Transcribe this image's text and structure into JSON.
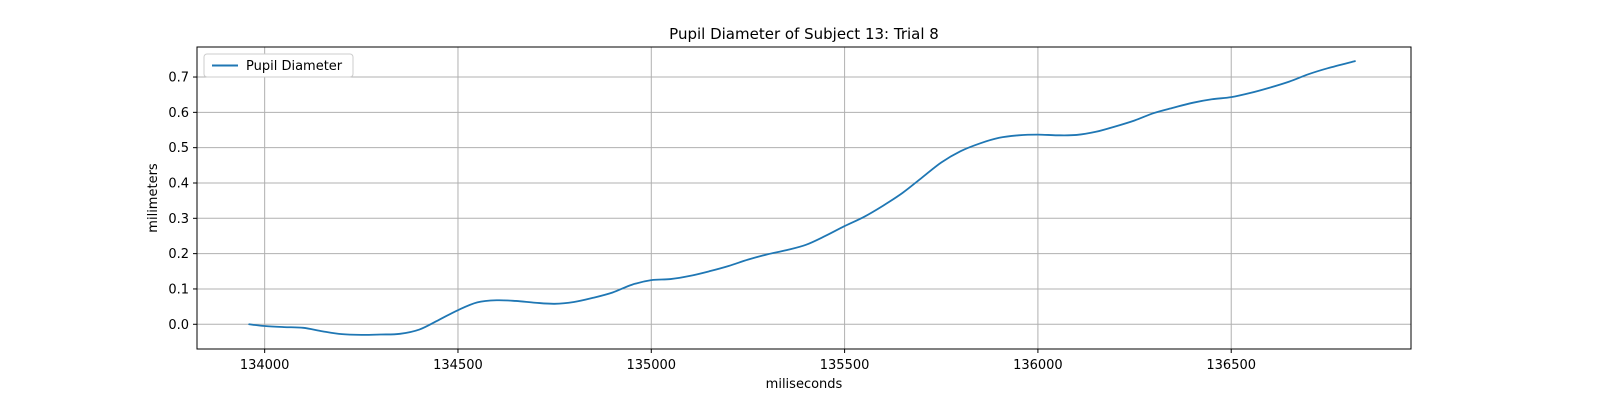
{
  "chart_data": {
    "type": "line",
    "title": "Pupil Diameter of Subject 13: Trial 8",
    "xlabel": "miliseconds",
    "ylabel": "milimeters",
    "xlim": [
      133825,
      136965
    ],
    "ylim": [
      -0.07,
      0.785
    ],
    "xticks": [
      134000,
      134500,
      135000,
      135500,
      136000,
      136500
    ],
    "yticks": [
      0.0,
      0.1,
      0.2,
      0.3,
      0.4,
      0.5,
      0.6,
      0.7
    ],
    "grid": true,
    "legend": {
      "position": "upper-left"
    },
    "series": [
      {
        "name": "Pupil Diameter",
        "color": "#1f77b4",
        "x": [
          133960,
          134000,
          134050,
          134100,
          134150,
          134200,
          134250,
          134300,
          134350,
          134400,
          134450,
          134500,
          134550,
          134600,
          134650,
          134700,
          134750,
          134800,
          134850,
          134900,
          134950,
          135000,
          135050,
          135100,
          135150,
          135200,
          135250,
          135300,
          135350,
          135400,
          135450,
          135500,
          135550,
          135600,
          135650,
          135700,
          135750,
          135800,
          135850,
          135900,
          135950,
          136000,
          136050,
          136100,
          136150,
          136200,
          136250,
          136300,
          136350,
          136400,
          136450,
          136500,
          136550,
          136600,
          136650,
          136700,
          136750,
          136820
        ],
        "y": [
          0.0,
          -0.005,
          -0.008,
          -0.01,
          -0.02,
          -0.028,
          -0.03,
          -0.029,
          -0.027,
          -0.015,
          0.012,
          0.04,
          0.062,
          0.068,
          0.066,
          0.061,
          0.058,
          0.063,
          0.075,
          0.09,
          0.112,
          0.125,
          0.128,
          0.137,
          0.15,
          0.165,
          0.183,
          0.198,
          0.21,
          0.225,
          0.25,
          0.278,
          0.304,
          0.336,
          0.372,
          0.415,
          0.458,
          0.49,
          0.512,
          0.528,
          0.535,
          0.537,
          0.535,
          0.536,
          0.545,
          0.56,
          0.577,
          0.598,
          0.613,
          0.627,
          0.637,
          0.643,
          0.655,
          0.67,
          0.687,
          0.708,
          0.725,
          0.745
        ]
      }
    ]
  }
}
